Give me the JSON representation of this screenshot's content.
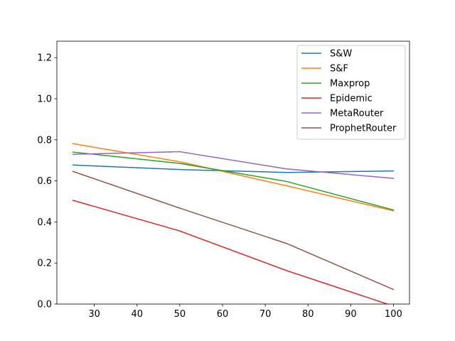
{
  "chart_data": {
    "type": "line",
    "title": "",
    "xlabel": "",
    "ylabel": "",
    "x": [
      25,
      50,
      75,
      100
    ],
    "xlim": [
      21.25,
      103.75
    ],
    "ylim": [
      0.0,
      1.28
    ],
    "xticks": [
      30,
      40,
      50,
      60,
      70,
      80,
      90,
      100
    ],
    "yticks": [
      0.0,
      0.2,
      0.4,
      0.6,
      0.8,
      1.0,
      1.2
    ],
    "xtick_labels": [
      "30",
      "40",
      "50",
      "60",
      "70",
      "80",
      "90",
      "100"
    ],
    "ytick_labels": [
      "0.0",
      "0.2",
      "0.4",
      "0.6",
      "0.8",
      "1.0",
      "1.2"
    ],
    "grid": false,
    "legend_position": "top-right",
    "series": [
      {
        "name": "S&W",
        "color": "#1f77b4",
        "values": [
          0.677,
          0.655,
          0.641,
          0.648
        ]
      },
      {
        "name": "S&F",
        "color": "#ff7f0e",
        "values": [
          0.781,
          0.693,
          0.576,
          0.454
        ]
      },
      {
        "name": "Maxprop",
        "color": "#2ca02c",
        "values": [
          0.74,
          0.685,
          0.597,
          0.458
        ]
      },
      {
        "name": "Epidemic",
        "color": "#d62728",
        "values": [
          0.505,
          0.356,
          0.163,
          -0.01
        ]
      },
      {
        "name": "MetaRouter",
        "color": "#9467bd",
        "values": [
          0.729,
          0.742,
          0.658,
          0.612
        ]
      },
      {
        "name": "ProphetRouter",
        "color": "#8c564b",
        "values": [
          0.646,
          0.467,
          0.295,
          0.071
        ]
      }
    ]
  }
}
